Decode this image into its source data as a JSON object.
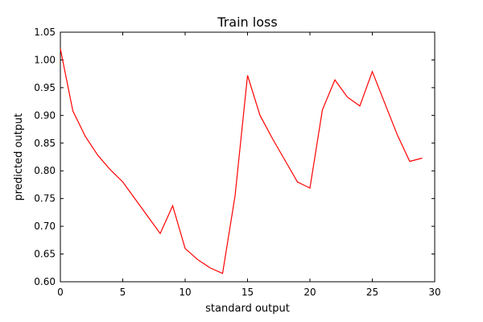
{
  "chart_data": {
    "type": "line",
    "title": "Train loss",
    "xlabel": "standard output",
    "ylabel": "predicted output",
    "xlim": [
      0,
      30
    ],
    "ylim": [
      0.6,
      1.05
    ],
    "xticks": [
      0,
      5,
      10,
      15,
      20,
      25,
      30
    ],
    "xtick_labels": [
      "0",
      "5",
      "10",
      "15",
      "20",
      "25",
      "30"
    ],
    "yticks": [
      0.6,
      0.65,
      0.7,
      0.75,
      0.8,
      0.85,
      0.9,
      0.95,
      1.0,
      1.05
    ],
    "ytick_labels": [
      "0.60",
      "0.65",
      "0.70",
      "0.75",
      "0.80",
      "0.85",
      "0.90",
      "0.95",
      "1.00",
      "1.05"
    ],
    "grid": false,
    "series": [
      {
        "color": "#ff0000",
        "x": [
          0,
          1,
          2,
          3,
          4,
          5,
          6,
          7,
          8,
          9,
          10,
          11,
          12,
          13,
          14,
          15,
          16,
          17,
          18,
          19,
          20,
          21,
          22,
          23,
          24,
          25,
          26,
          27,
          28,
          29
        ],
        "y": [
          1.02,
          0.908,
          0.862,
          0.828,
          0.802,
          0.78,
          0.749,
          0.718,
          0.687,
          0.737,
          0.66,
          0.64,
          0.625,
          0.615,
          0.755,
          0.972,
          0.9,
          0.858,
          0.819,
          0.78,
          0.769,
          0.91,
          0.964,
          0.933,
          0.917,
          0.979,
          0.922,
          0.865,
          0.817,
          0.823
        ]
      }
    ]
  }
}
